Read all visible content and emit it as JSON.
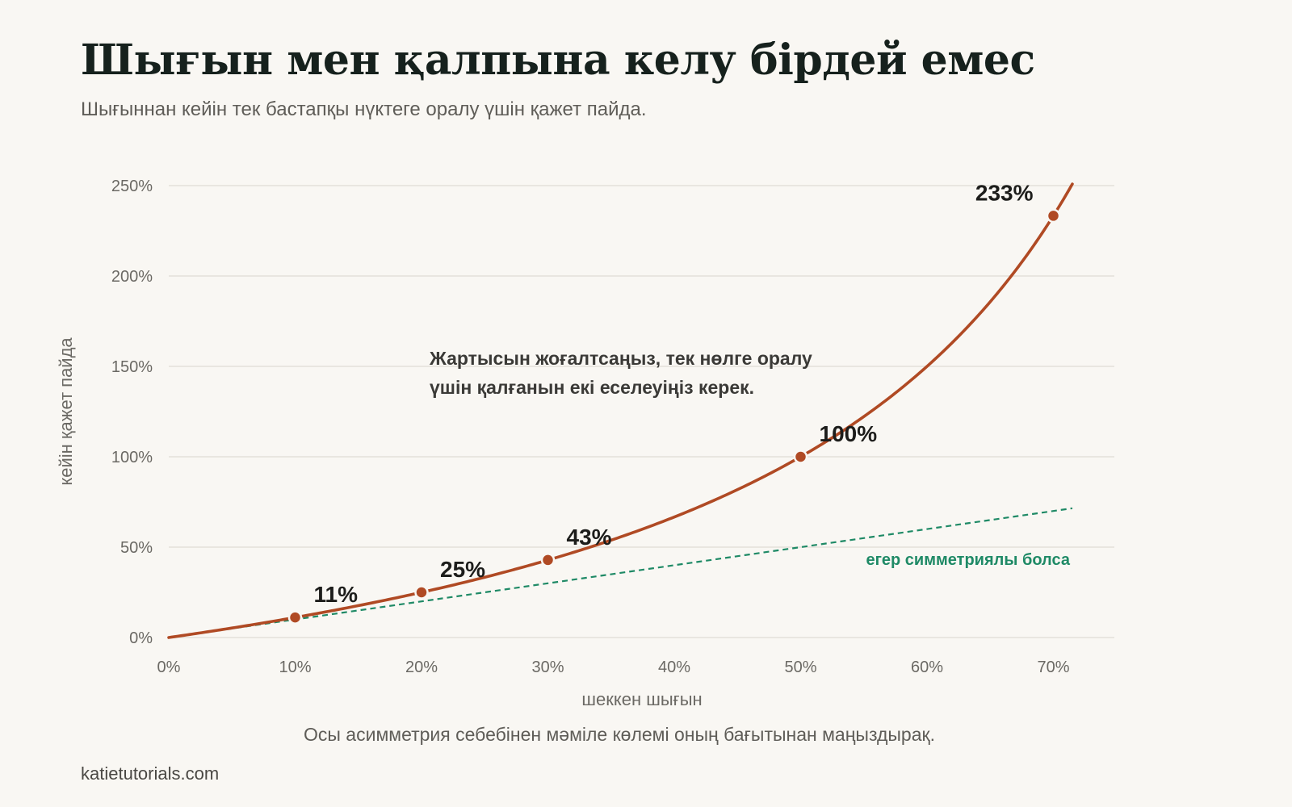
{
  "header": {
    "title": "Шығын мен қалпына келу бірдей емес",
    "subtitle": "Шығыннан кейін тек бастапқы нүктеге оралу үшін қажет пайда."
  },
  "footer": {
    "note": "Осы асимметрия себебінен мәміле көлемі оның бағытынан маңыздырақ.",
    "source": "katietutorials.com"
  },
  "chart_data": {
    "type": "line",
    "xlabel": "шеккен шығын",
    "ylabel": "кейін қажет пайда",
    "xlim": [
      0,
      72
    ],
    "ylim": [
      0,
      250
    ],
    "x_ticks": [
      0,
      10,
      20,
      30,
      40,
      50,
      60,
      70
    ],
    "x_tick_labels": [
      "0%",
      "10%",
      "20%",
      "30%",
      "40%",
      "50%",
      "60%",
      "70%"
    ],
    "y_ticks": [
      0,
      50,
      100,
      150,
      200,
      250
    ],
    "y_tick_labels": [
      "0%",
      "50%",
      "100%",
      "150%",
      "200%",
      "250%"
    ],
    "grid": "horizontal",
    "series": [
      {
        "formula": "y = 100*x/(100-x)",
        "style": "solid",
        "color": "#b04a24",
        "x": [
          0,
          5,
          10,
          15,
          20,
          25,
          30,
          35,
          40,
          45,
          50,
          55,
          60,
          65,
          70,
          71.5
        ],
        "y": [
          0,
          5.3,
          11.1,
          17.6,
          25,
          33.3,
          42.9,
          53.8,
          66.7,
          81.8,
          100,
          122.2,
          150,
          185.7,
          233.3,
          251
        ]
      },
      {
        "name": "егер симметриялы болса",
        "style": "dashed",
        "color": "#1f8a66",
        "x": [
          0,
          71.5
        ],
        "y": [
          0,
          71.5
        ]
      }
    ],
    "points": [
      {
        "x": 10,
        "y": 11.1,
        "label": "11%"
      },
      {
        "x": 20,
        "y": 25,
        "label": "25%"
      },
      {
        "x": 30,
        "y": 42.9,
        "label": "43%"
      },
      {
        "x": 50,
        "y": 100,
        "label": "100%"
      },
      {
        "x": 70,
        "y": 233.3,
        "label": "233%"
      }
    ],
    "annotation": [
      "Жартысын жоғалтсаңыз, тек нөлге оралу",
      "үшін қалғанын екі еселеуіңіз керек."
    ],
    "colors": {
      "curve": "#b04a24",
      "symmetric": "#1f8a66",
      "grid": "#e4e1da",
      "tick_text": "#6b6964",
      "point_label": "#1d1d1b"
    }
  }
}
